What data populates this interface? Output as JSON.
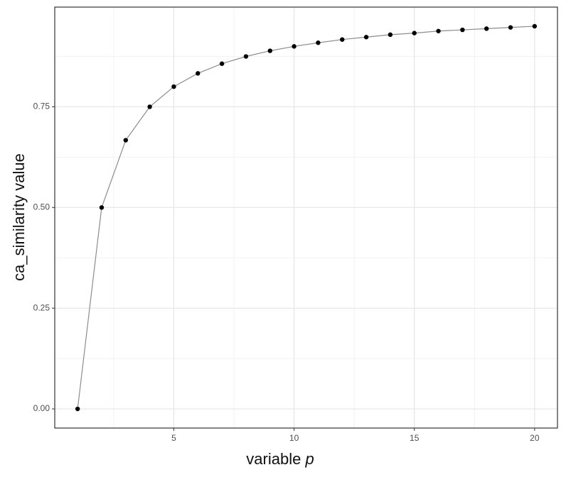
{
  "chart_data": {
    "type": "line",
    "xlabel": "variable",
    "xlabel_variable": "p",
    "ylabel": "ca_similarity value",
    "x": [
      1,
      2,
      3,
      4,
      5,
      6,
      7,
      8,
      9,
      10,
      11,
      12,
      13,
      14,
      15,
      16,
      17,
      18,
      19,
      20
    ],
    "series": [
      {
        "color": "#000000",
        "line_color": "#8c8c8c",
        "values": [
          0,
          0.5,
          0.667,
          0.75,
          0.8,
          0.833,
          0.857,
          0.875,
          0.889,
          0.9,
          0.909,
          0.917,
          0.923,
          0.929,
          0.933,
          0.938,
          0.941,
          0.944,
          0.947,
          0.95
        ]
      }
    ],
    "xlim": [
      0.05,
      20.95
    ],
    "ylim": [
      -0.0475,
      0.9975
    ],
    "xticks": [
      5,
      10,
      15,
      20
    ],
    "yticks": [
      {
        "value": 0,
        "label": "0.00"
      },
      {
        "value": 0.25,
        "label": "0.25"
      },
      {
        "value": 0.5,
        "label": "0.50"
      },
      {
        "value": 0.75,
        "label": "0.75"
      }
    ],
    "x_minor_ticks": [
      2.5,
      7.5,
      12.5,
      17.5
    ],
    "y_minor_ticks": [
      0.125,
      0.375,
      0.625,
      0.875
    ],
    "grid": true
  }
}
